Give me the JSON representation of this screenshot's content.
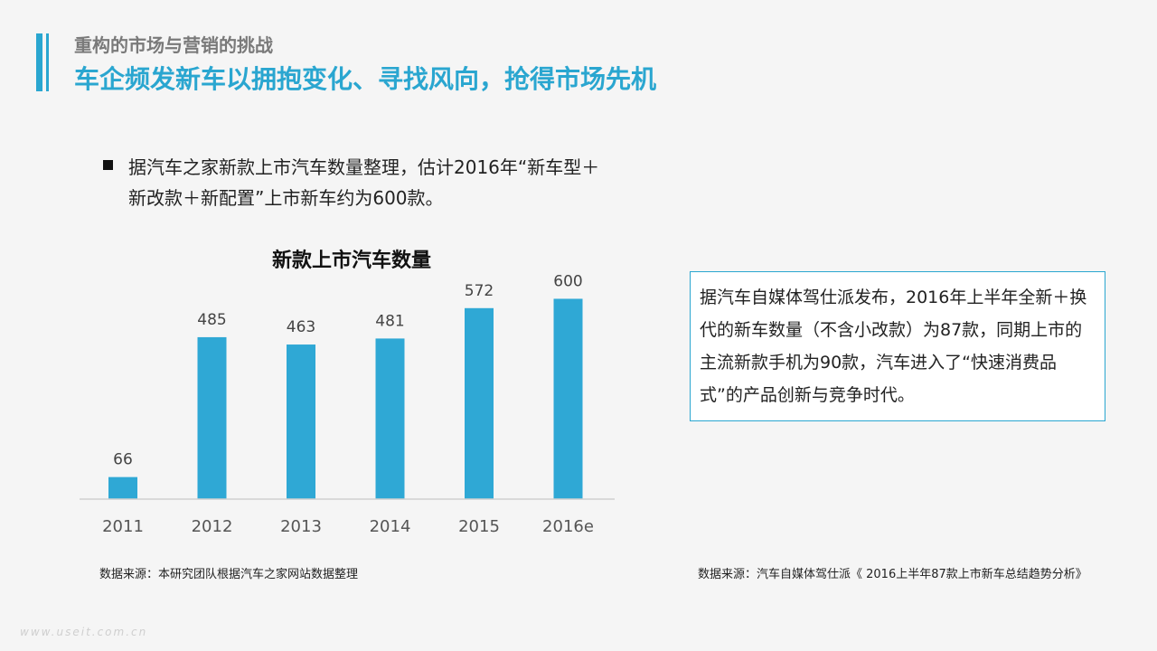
{
  "header": {
    "section_title": "重构的市场与营销的挑战",
    "main_title": "车企频发新车以拥抱变化、寻找风向，抢得市场先机"
  },
  "bullet": {
    "text": "据汽车之家新款上市汽车数量整理，估计2016年“新车型＋新改款＋新配置”上市新车约为600款。"
  },
  "info_box": {
    "text": "据汽车自媒体驾仕派发布，2016年上半年全新＋换代的新车数量（不含小改款）为87款，同期上市的主流新款手机为90款，汽车进入了“快速消费品式”的产品创新与竞争时代。"
  },
  "sources": {
    "left": "数据来源：本研究团队根据汽车之家网站数据整理",
    "right": "数据来源：汽车自媒体驾仕派《 2016上半年87款上市新车总结趋势分析》"
  },
  "watermark": "www.useit.com.cn",
  "colors": {
    "accent": "#2aa6d0",
    "bar": "#2fa8d5"
  },
  "chart_data": {
    "type": "bar",
    "title": "新款上市汽车数量",
    "categories": [
      "2011",
      "2012",
      "2013",
      "2014",
      "2015",
      "2016e"
    ],
    "values": [
      66,
      485,
      463,
      481,
      572,
      600
    ],
    "value_labels": [
      "66",
      "485",
      "463",
      "481",
      "572",
      "600"
    ],
    "xlabel": "",
    "ylabel": "",
    "ylim": [
      0,
      650
    ],
    "grid": false,
    "legend": "none"
  }
}
